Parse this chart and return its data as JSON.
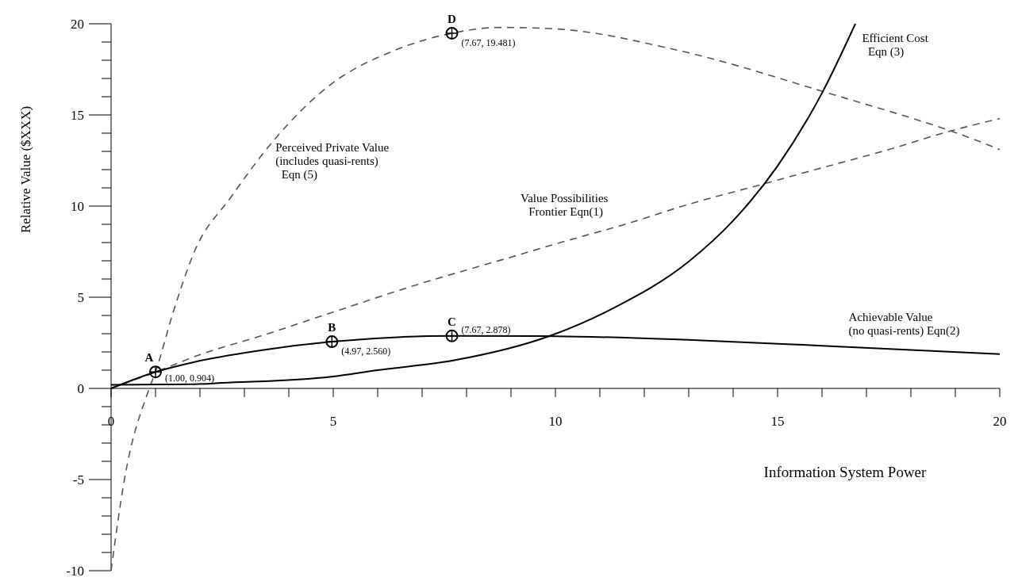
{
  "chart_data": {
    "type": "line",
    "xlabel": "Information System Power",
    "ylabel": "Relative Value ($XXX)",
    "xlim": [
      0,
      20
    ],
    "ylim": [
      -10,
      20
    ],
    "xticks": [
      0,
      {
        "value": 1,
        "label": null
      },
      {
        "value": 2,
        "label": null
      },
      {
        "value": 3,
        "label": null
      },
      {
        "value": 4,
        "label": null
      },
      5,
      {
        "value": 6,
        "label": null
      },
      {
        "value": 7,
        "label": null
      },
      {
        "value": 8,
        "label": null
      },
      {
        "value": 9,
        "label": null
      },
      10,
      {
        "value": 11,
        "label": null
      },
      {
        "value": 12,
        "label": null
      },
      {
        "value": 13,
        "label": null
      },
      {
        "value": 14,
        "label": null
      },
      15,
      {
        "value": 16,
        "label": null
      },
      {
        "value": 17,
        "label": null
      },
      {
        "value": 18,
        "label": null
      },
      {
        "value": 19,
        "label": null
      },
      20
    ],
    "yticks": [
      -10,
      {
        "value": -9,
        "label": null
      },
      {
        "value": -8,
        "label": null
      },
      {
        "value": -7,
        "label": null
      },
      {
        "value": -6,
        "label": null
      },
      -5,
      {
        "value": -4,
        "label": null
      },
      {
        "value": -3,
        "label": null
      },
      {
        "value": -2,
        "label": null
      },
      {
        "value": -1,
        "label": null
      },
      0,
      {
        "value": 1,
        "label": null
      },
      {
        "value": 2,
        "label": null
      },
      {
        "value": 3,
        "label": null
      },
      {
        "value": 4,
        "label": null
      },
      5,
      {
        "value": 6,
        "label": null
      },
      {
        "value": 7,
        "label": null
      },
      {
        "value": 8,
        "label": null
      },
      {
        "value": 9,
        "label": null
      },
      10,
      {
        "value": 11,
        "label": null
      },
      {
        "value": 12,
        "label": null
      },
      {
        "value": 13,
        "label": null
      },
      {
        "value": 14,
        "label": null
      },
      15,
      {
        "value": 16,
        "label": null
      },
      {
        "value": 17,
        "label": null
      },
      {
        "value": 18,
        "label": null
      },
      {
        "value": 19,
        "label": null
      },
      20
    ],
    "grid": false,
    "series": [
      {
        "name": "Perceived Private Value\n(includes quasi-rents)\n  Eqn (5)",
        "color": "#555555",
        "line_style": "dashed",
        "x": [
          0,
          0.3,
          0.86,
          1,
          1.4,
          1.875,
          2.7,
          3.66,
          4.96,
          6.34,
          7.67,
          8.75,
          10,
          12.66,
          16,
          19.86,
          20
        ],
        "values": [
          -10,
          -5,
          0,
          0.904,
          4.2,
          7.5,
          10.5,
          13.6,
          16.7,
          18.5,
          19.481,
          19.8,
          19.72,
          18.6,
          16.3,
          13.24,
          13.1
        ]
      },
      {
        "name": "Value Possibilities\n Frontier Eqn(1)",
        "color": "#555555",
        "line_style": "dashed",
        "x": [
          0,
          1,
          2,
          3.4,
          4.77,
          6.9,
          9,
          10.4,
          11.5,
          13,
          14.66,
          16,
          17.5,
          18.86,
          20
        ],
        "values": [
          0,
          0.9,
          1.85,
          2.9,
          4.0,
          5.7,
          7.2,
          8.2,
          8.95,
          10.1,
          11.2,
          12.1,
          13.1,
          14.1,
          14.8
        ]
      },
      {
        "name": "Efficient Cost\n  Eqn (3)",
        "color": "#000000",
        "line_style": "solid",
        "x": [
          0,
          1.875,
          2.5,
          4.96,
          6,
          7.7,
          9.9,
          11.3,
          13,
          14,
          15,
          16,
          16.75
        ],
        "values": [
          0.2,
          0.23,
          0.3,
          0.64,
          1.0,
          1.53,
          2.9,
          4.4,
          6.96,
          9.2,
          12.2,
          16.2,
          20
        ]
      },
      {
        "name": "Achievable Value\n(no quasi-rents) Eqn(2)",
        "color": "#000000",
        "line_style": "solid",
        "x": [
          0,
          1,
          1.875,
          3.4,
          4.97,
          7.67,
          10,
          13,
          16,
          20
        ],
        "values": [
          0,
          0.904,
          1.45,
          2.1,
          2.56,
          2.878,
          2.86,
          2.66,
          2.34,
          1.88
        ]
      },
      {
        "type": "scatter",
        "color": "#000000",
        "marker": "circle",
        "x": [
          1.0,
          4.97,
          7.67,
          7.67
        ],
        "values": [
          0.904,
          2.56,
          2.878,
          19.481
        ],
        "value_labels": [
          "(1.00, 0.904)",
          "(4.97, 2.560)",
          "(7.67, 2.878)",
          "(7.67, 19.481)"
        ]
      }
    ],
    "annotations": [
      {
        "text": "A",
        "x": 1.0,
        "y": 0.904
      },
      {
        "text": "B",
        "x": 4.97,
        "y": 2.56
      },
      {
        "text": "C",
        "x": 7.67,
        "y": 2.878
      },
      {
        "text": "D",
        "x": 7.67,
        "y": 19.481
      }
    ]
  }
}
